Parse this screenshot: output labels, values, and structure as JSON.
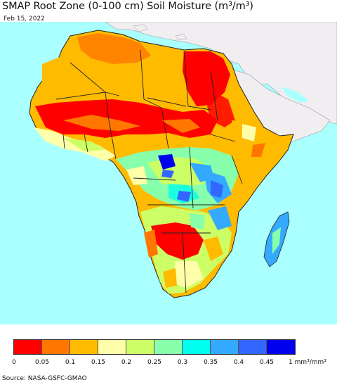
{
  "header": {
    "title": "SMAP Root Zone (0-100 cm) Soil Moisture (m³/m³)",
    "date": "Feb 15, 2022"
  },
  "map": {
    "ocean_color": "#aaffff",
    "land_outside_color": "#f0eef0",
    "border_color": "#222222"
  },
  "legend": {
    "colors": [
      "#ff0000",
      "#ff7700",
      "#ffbb00",
      "#ffffaa",
      "#ccff66",
      "#88ffaa",
      "#00ffee",
      "#33aaff",
      "#3366ff",
      "#0000ee"
    ],
    "ticks": [
      "0",
      "0.05",
      "0.1",
      "0.15",
      "0.2",
      "0.25",
      "0.3",
      "0.35",
      "0.4",
      "0.45"
    ],
    "unit": "1 mm³/mm³"
  },
  "footer": {
    "source": "Source: NASA-GSFC-GMAO"
  }
}
